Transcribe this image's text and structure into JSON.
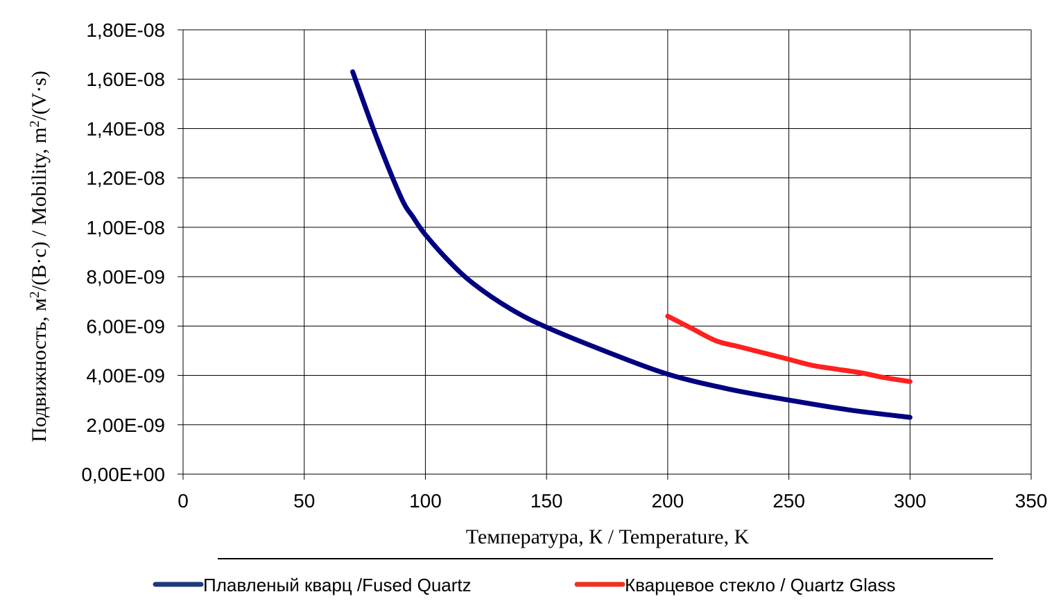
{
  "chart_data": {
    "type": "line",
    "xlabel": "Температура, К / Temperature, K",
    "ylabel_parts": [
      "Подвижность, м",
      "2",
      "/(В·с) / Mobility, m",
      "2",
      "/(V·s)"
    ],
    "xlim": [
      0,
      350
    ],
    "ylim": [
      0,
      1.8e-08
    ],
    "x_ticks": [
      0,
      50,
      100,
      150,
      200,
      250,
      300,
      350
    ],
    "x_tick_labels": [
      "0",
      "50",
      "100",
      "150",
      "200",
      "250",
      "300",
      "350"
    ],
    "y_ticks": [
      0,
      2e-09,
      4e-09,
      6e-09,
      8e-09,
      1e-08,
      1.2e-08,
      1.4e-08,
      1.6e-08,
      1.8e-08
    ],
    "y_tick_labels": [
      "0,00E+00",
      "2,00E-09",
      "4,00E-09",
      "6,00E-09",
      "8,00E-09",
      "1,00E-08",
      "1,20E-08",
      "1,40E-08",
      "1,60E-08",
      "1,80E-08"
    ],
    "grid": true,
    "legend_position": "bottom",
    "series": [
      {
        "name": "Плавленый кварц /Fused Quartz",
        "color": "#000080",
        "x": [
          70,
          80,
          90,
          95,
          100,
          110,
          120,
          135,
          150,
          175,
          200,
          225,
          250,
          275,
          300
        ],
        "y": [
          1.63e-08,
          1.36e-08,
          1.12e-08,
          1.04e-08,
          9.7e-09,
          8.6e-09,
          7.7e-09,
          6.7e-09,
          5.95e-09,
          4.95e-09,
          4.05e-09,
          3.45e-09,
          3e-09,
          2.6e-09,
          2.3e-09
        ]
      },
      {
        "name": "Кварцевое стекло / Quartz Glass",
        "color": "#ff2020",
        "x": [
          200,
          210,
          220,
          230,
          240,
          250,
          260,
          270,
          280,
          290,
          300
        ],
        "y": [
          6.4e-09,
          5.9e-09,
          5.4e-09,
          5.15e-09,
          4.9e-09,
          4.65e-09,
          4.4e-09,
          4.25e-09,
          4.1e-09,
          3.9e-09,
          3.75e-09
        ]
      }
    ]
  }
}
